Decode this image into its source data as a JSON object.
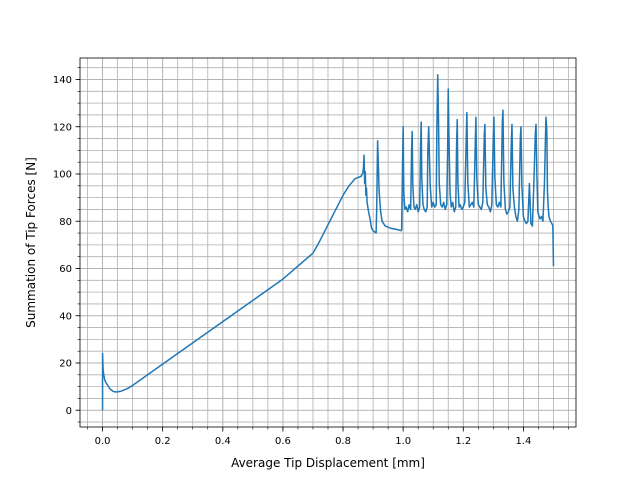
{
  "chart_data": {
    "type": "line",
    "title": "",
    "xlabel": "Average Tip Displacement [mm]",
    "ylabel": "Summation of Tip Forces [N]",
    "xlim": [
      -0.075,
      1.575
    ],
    "ylim": [
      -7.1,
      149.1
    ],
    "x_ticks": [
      0.0,
      0.2,
      0.4,
      0.6,
      0.8,
      1.0,
      1.2,
      1.4
    ],
    "x_tick_labels": [
      "0.0",
      "0.2",
      "0.4",
      "0.6",
      "0.8",
      "1.0",
      "1.2",
      "1.4"
    ],
    "y_ticks": [
      0,
      20,
      40,
      60,
      80,
      100,
      120,
      140
    ],
    "y_tick_labels": [
      "0",
      "20",
      "40",
      "60",
      "80",
      "100",
      "120",
      "140"
    ],
    "grid": true,
    "minor_grid": true,
    "legend": "none",
    "series_color": "#1f77b4",
    "x": [
      0.0,
      0.0,
      0.001,
      0.002,
      0.004,
      0.007,
      0.01,
      0.015,
      0.02,
      0.025,
      0.03,
      0.035,
      0.04,
      0.045,
      0.05,
      0.06,
      0.07,
      0.08,
      0.1,
      0.15,
      0.2,
      0.25,
      0.3,
      0.35,
      0.4,
      0.45,
      0.5,
      0.55,
      0.6,
      0.65,
      0.7,
      0.72,
      0.73,
      0.74,
      0.75,
      0.76,
      0.77,
      0.78,
      0.79,
      0.8,
      0.82,
      0.84,
      0.86,
      0.866,
      0.868,
      0.87,
      0.872,
      0.874,
      0.876,
      0.878,
      0.88,
      0.885,
      0.89,
      0.895,
      0.9,
      0.905,
      0.91,
      0.912,
      0.915,
      0.918,
      0.92,
      0.925,
      0.93,
      0.94,
      0.96,
      0.98,
      0.993,
      0.995,
      0.998,
      1.0,
      1.002,
      1.004,
      1.006,
      1.01,
      1.015,
      1.02,
      1.025,
      1.028,
      1.03,
      1.032,
      1.036,
      1.04,
      1.045,
      1.05,
      1.055,
      1.058,
      1.06,
      1.062,
      1.066,
      1.07,
      1.075,
      1.08,
      1.082,
      1.085,
      1.09,
      1.095,
      1.1,
      1.105,
      1.11,
      1.112,
      1.115,
      1.118,
      1.12,
      1.125,
      1.13,
      1.135,
      1.14,
      1.145,
      1.148,
      1.15,
      1.152,
      1.156,
      1.16,
      1.165,
      1.17,
      1.175,
      1.178,
      1.18,
      1.182,
      1.186,
      1.19,
      1.195,
      1.2,
      1.205,
      1.21,
      1.212,
      1.215,
      1.22,
      1.225,
      1.23,
      1.235,
      1.24,
      1.242,
      1.245,
      1.25,
      1.255,
      1.26,
      1.265,
      1.27,
      1.272,
      1.275,
      1.28,
      1.285,
      1.29,
      1.295,
      1.3,
      1.302,
      1.305,
      1.31,
      1.315,
      1.32,
      1.325,
      1.33,
      1.332,
      1.335,
      1.34,
      1.345,
      1.35,
      1.355,
      1.36,
      1.362,
      1.365,
      1.37,
      1.375,
      1.38,
      1.385,
      1.39,
      1.392,
      1.395,
      1.4,
      1.405,
      1.41,
      1.415,
      1.42,
      1.425,
      1.43,
      1.435,
      1.44,
      1.442,
      1.445,
      1.448,
      1.45,
      1.455,
      1.46,
      1.465,
      1.47,
      1.475,
      1.478,
      1.48,
      1.482,
      1.485,
      1.49,
      1.495,
      1.498,
      1.5
    ],
    "y": [
      0,
      24,
      20,
      17,
      15,
      13,
      12,
      11,
      10,
      9,
      8.5,
      8,
      7.8,
      7.7,
      7.8,
      8,
      8.5,
      9,
      10.5,
      15,
      19.5,
      24,
      28.5,
      33,
      37.5,
      42,
      46.5,
      51,
      55.5,
      61,
      66.5,
      71,
      73.5,
      76,
      78.5,
      81,
      83.5,
      86,
      88.5,
      91,
      95,
      98,
      99,
      100.5,
      103,
      108,
      96,
      101,
      91,
      94,
      88,
      84,
      81,
      77,
      76,
      75.5,
      75,
      85,
      114,
      102,
      93,
      84,
      80,
      78,
      77,
      76.5,
      76,
      76.5,
      104,
      120,
      93,
      88,
      85,
      86,
      84,
      87,
      85,
      110,
      118,
      96,
      86,
      85,
      87,
      84,
      86,
      112,
      122,
      98,
      87,
      85,
      84,
      86,
      109,
      120,
      95,
      86,
      88,
      86,
      87,
      117,
      142,
      120,
      96,
      87,
      86,
      88,
      85,
      87,
      110,
      136,
      118,
      92,
      86,
      88,
      84,
      86,
      114,
      123,
      97,
      86,
      87,
      85,
      86,
      88,
      116,
      126,
      97,
      86,
      87,
      88,
      86,
      113,
      124,
      98,
      87,
      86,
      85,
      88,
      117,
      121,
      94,
      87,
      86,
      84,
      87,
      116,
      124,
      99,
      87,
      86,
      88,
      86,
      122,
      127,
      97,
      85,
      83,
      84,
      86,
      114,
      121,
      94,
      86,
      82,
      80,
      85,
      116,
      120,
      95,
      82,
      80,
      79,
      80,
      96,
      79,
      78,
      97,
      118,
      121,
      99,
      84,
      83,
      81,
      82,
      80,
      96,
      124,
      118,
      93,
      87,
      82,
      80,
      79,
      78,
      61
    ]
  }
}
